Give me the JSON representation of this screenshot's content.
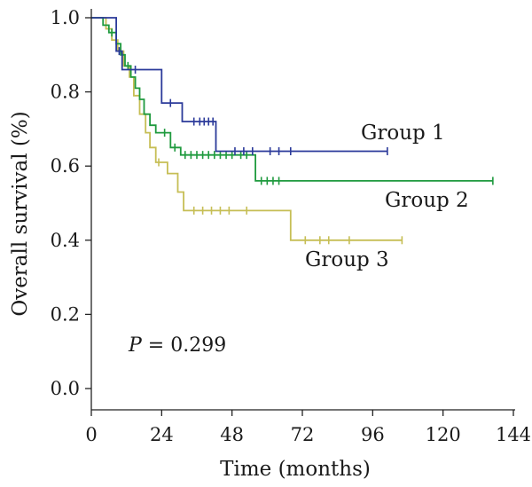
{
  "chart_data": {
    "type": "line",
    "xlabel": "Time (months)",
    "ylabel": "Overall survival (%)",
    "xlim": [
      0,
      144
    ],
    "ylim": [
      0,
      1.0
    ],
    "xticks": [
      0,
      24,
      48,
      72,
      96,
      120,
      144
    ],
    "yticks": [
      0.0,
      0.2,
      0.4,
      0.6,
      0.8,
      1.0
    ],
    "xtick_labels": [
      "0",
      "24",
      "48",
      "72",
      "96",
      "120",
      "144"
    ],
    "ytick_labels": [
      "0.0",
      "0.2",
      "0.4",
      "0.6",
      "0.8",
      "1.0"
    ],
    "annotation": {
      "p_symbol": "P",
      "p_text": " = 0.299"
    },
    "grid": false,
    "series": [
      {
        "name": "Group 1",
        "color": "#2b3a9a",
        "steps": [
          [
            0,
            1.0
          ],
          [
            8.5,
            0.91
          ],
          [
            10.5,
            0.86
          ],
          [
            24,
            0.77
          ],
          [
            31,
            0.72
          ],
          [
            42.5,
            0.64
          ],
          [
            101,
            0.64
          ]
        ],
        "censors": [
          [
            9.5,
            0.91
          ],
          [
            15,
            0.86
          ],
          [
            27,
            0.77
          ],
          [
            35,
            0.72
          ],
          [
            37,
            0.72
          ],
          [
            38.5,
            0.72
          ],
          [
            40,
            0.72
          ],
          [
            41.5,
            0.72
          ],
          [
            49,
            0.64
          ],
          [
            52,
            0.64
          ],
          [
            55,
            0.64
          ],
          [
            61,
            0.64
          ],
          [
            64,
            0.64
          ],
          [
            68,
            0.64
          ],
          [
            101,
            0.64
          ]
        ]
      },
      {
        "name": "Group 2",
        "color": "#1f9a3e",
        "steps": [
          [
            0,
            1.0
          ],
          [
            4,
            0.98
          ],
          [
            6,
            0.96
          ],
          [
            8.5,
            0.93
          ],
          [
            10,
            0.9
          ],
          [
            11.5,
            0.87
          ],
          [
            13.5,
            0.84
          ],
          [
            15,
            0.81
          ],
          [
            16.5,
            0.78
          ],
          [
            18,
            0.74
          ],
          [
            20,
            0.71
          ],
          [
            22,
            0.69
          ],
          [
            27,
            0.65
          ],
          [
            30.5,
            0.63
          ],
          [
            56,
            0.56
          ],
          [
            137,
            0.56
          ]
        ],
        "censors": [
          [
            7,
            0.96
          ],
          [
            12.5,
            0.87
          ],
          [
            25,
            0.69
          ],
          [
            28.5,
            0.65
          ],
          [
            32,
            0.63
          ],
          [
            34,
            0.63
          ],
          [
            36,
            0.63
          ],
          [
            38,
            0.63
          ],
          [
            40,
            0.63
          ],
          [
            42,
            0.63
          ],
          [
            44,
            0.63
          ],
          [
            46,
            0.63
          ],
          [
            48,
            0.63
          ],
          [
            51,
            0.63
          ],
          [
            53,
            0.63
          ],
          [
            58,
            0.56
          ],
          [
            60,
            0.56
          ],
          [
            62,
            0.56
          ],
          [
            64,
            0.56
          ],
          [
            137,
            0.56
          ]
        ]
      },
      {
        "name": "Group 3",
        "color": "#c6be55",
        "steps": [
          [
            0,
            1.0
          ],
          [
            5,
            0.97
          ],
          [
            7,
            0.94
          ],
          [
            9,
            0.91
          ],
          [
            11,
            0.87
          ],
          [
            13,
            0.84
          ],
          [
            14.5,
            0.79
          ],
          [
            16.5,
            0.74
          ],
          [
            18.5,
            0.69
          ],
          [
            20,
            0.65
          ],
          [
            22,
            0.61
          ],
          [
            26,
            0.58
          ],
          [
            29.5,
            0.53
          ],
          [
            31.5,
            0.48
          ],
          [
            68,
            0.4
          ],
          [
            106,
            0.4
          ]
        ],
        "censors": [
          [
            23,
            0.61
          ],
          [
            35,
            0.48
          ],
          [
            38,
            0.48
          ],
          [
            41,
            0.48
          ],
          [
            44,
            0.48
          ],
          [
            47,
            0.48
          ],
          [
            53,
            0.48
          ],
          [
            73,
            0.4
          ],
          [
            78,
            0.4
          ],
          [
            81,
            0.4
          ],
          [
            88,
            0.4
          ],
          [
            106,
            0.4
          ]
        ]
      }
    ]
  }
}
